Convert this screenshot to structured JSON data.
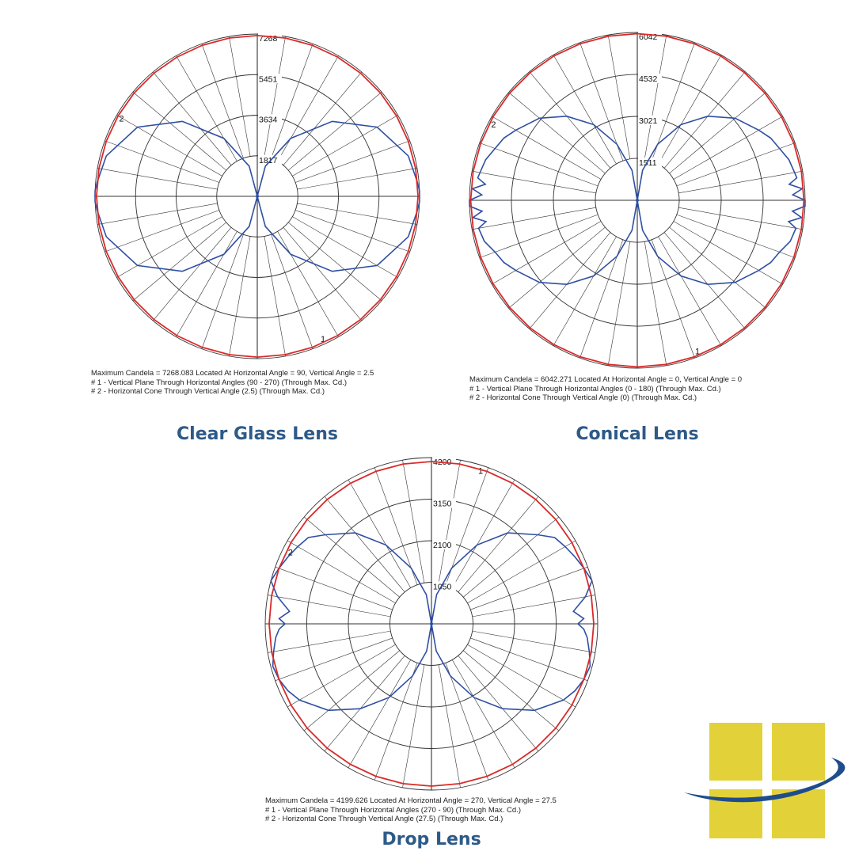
{
  "colors": {
    "grid": "#333333",
    "vertical_plane": "#2e4fa3",
    "horizontal_cone": "#d92a2a",
    "title": "#2e5a88",
    "logo_yellow": "#e3d13a",
    "logo_blue": "#1f4d8c"
  },
  "chart_data": [
    {
      "type": "polar",
      "title": "Clear Glass Lens",
      "rlim": [
        0,
        7268
      ],
      "radial_ticks": [
        1817,
        3634,
        5451,
        7268
      ],
      "grid": true,
      "caption": [
        "Maximum Candela = 7268.083   Located At Horizontal Angle = 90, Vertical Angle = 2.5",
        "# 1 - Vertical Plane Through Horizontal Angles (90 - 270) (Through Max. Cd.)",
        "# 2 - Horizontal Cone Through Vertical Angle (2.5) (Through Max. Cd.)"
      ],
      "series": [
        {
          "name": "1",
          "label_angle": 25,
          "values": [
            [
              0,
              0
            ],
            [
              15,
              1400
            ],
            [
              30,
              3000
            ],
            [
              45,
              4750
            ],
            [
              60,
              6200
            ],
            [
              75,
              7000
            ],
            [
              85,
              7200
            ],
            [
              88,
              7268
            ],
            [
              90,
              7268
            ],
            [
              92,
              7268
            ],
            [
              95,
              7200
            ],
            [
              105,
              7000
            ],
            [
              120,
              6200
            ],
            [
              135,
              4750
            ],
            [
              150,
              3000
            ],
            [
              165,
              1400
            ],
            [
              180,
              0
            ]
          ]
        },
        {
          "name": "2",
          "label_angle": 240,
          "constant": 7200
        }
      ]
    },
    {
      "type": "polar",
      "title": "Conical Lens",
      "rlim": [
        0,
        6042
      ],
      "radial_ticks": [
        1511,
        3021,
        4532,
        6042
      ],
      "grid": true,
      "caption": [
        "Maximum Candela = 6042.271   Located At Horizontal Angle = 0, Vertical Angle = 0",
        "# 1 - Vertical Plane Through Horizontal Angles (0 - 180) (Through Max. Cd.)",
        "# 2 - Horizontal Cone Through Vertical Angle (0) (Through Max. Cd.)"
      ],
      "series": [
        {
          "name": "1",
          "label_angle": 22,
          "values": [
            [
              0,
              0
            ],
            [
              10,
              1100
            ],
            [
              20,
              2150
            ],
            [
              30,
              3150
            ],
            [
              40,
              3950
            ],
            [
              50,
              4600
            ],
            [
              60,
              5050
            ],
            [
              65,
              5300
            ],
            [
              70,
              5450
            ],
            [
              75,
              5700
            ],
            [
              80,
              5800
            ],
            [
              82,
              5500
            ],
            [
              84,
              5950
            ],
            [
              86,
              5600
            ],
            [
              88,
              6042
            ],
            [
              90,
              6042
            ],
            [
              92,
              5600
            ],
            [
              94,
              5950
            ],
            [
              96,
              5500
            ],
            [
              98,
              5800
            ],
            [
              100,
              5750
            ],
            [
              105,
              5650
            ],
            [
              110,
              5450
            ],
            [
              115,
              5300
            ],
            [
              120,
              5050
            ],
            [
              130,
              4600
            ],
            [
              140,
              3950
            ],
            [
              150,
              3150
            ],
            [
              160,
              2150
            ],
            [
              170,
              1100
            ],
            [
              180,
              0
            ]
          ]
        },
        {
          "name": "2",
          "label_angle": 242,
          "constant": 6000
        }
      ]
    },
    {
      "type": "polar",
      "title": "Drop Lens",
      "rlim": [
        0,
        4200
      ],
      "radial_ticks": [
        1050,
        2100,
        3150,
        4200
      ],
      "grid": true,
      "caption": [
        "Maximum Candela = 4199.626   Located At Horizontal Angle = 270, Vertical Angle = 27.5",
        "# 1 - Vertical Plane Through Horizontal Angles (270 - 90) (Through Max. Cd.)",
        "# 2 - Horizontal Cone Through Vertical Angle (27.5) (Through Max. Cd.)"
      ],
      "series": [
        {
          "name": "1",
          "label_angle": 162,
          "values": [
            [
              0,
              0
            ],
            [
              10,
              700
            ],
            [
              20,
              1400
            ],
            [
              30,
              2150
            ],
            [
              40,
              2800
            ],
            [
              50,
              3400
            ],
            [
              60,
              3850
            ],
            [
              65,
              4000
            ],
            [
              70,
              4100
            ],
            [
              75,
              4150
            ],
            [
              80,
              4050
            ],
            [
              85,
              3950
            ],
            [
              88,
              3850
            ],
            [
              90,
              3700
            ],
            [
              92,
              3850
            ],
            [
              95,
              3600
            ],
            [
              100,
              3950
            ],
            [
              105,
              4200
            ],
            [
              110,
              4100
            ],
            [
              115,
              4000
            ],
            [
              120,
              3900
            ],
            [
              125,
              3800
            ],
            [
              130,
              3500
            ],
            [
              140,
              3000
            ],
            [
              150,
              2300
            ],
            [
              160,
              1500
            ],
            [
              170,
              750
            ],
            [
              180,
              0
            ]
          ]
        },
        {
          "name": "2",
          "label_angle": 243,
          "constant": 4100
        }
      ]
    }
  ]
}
